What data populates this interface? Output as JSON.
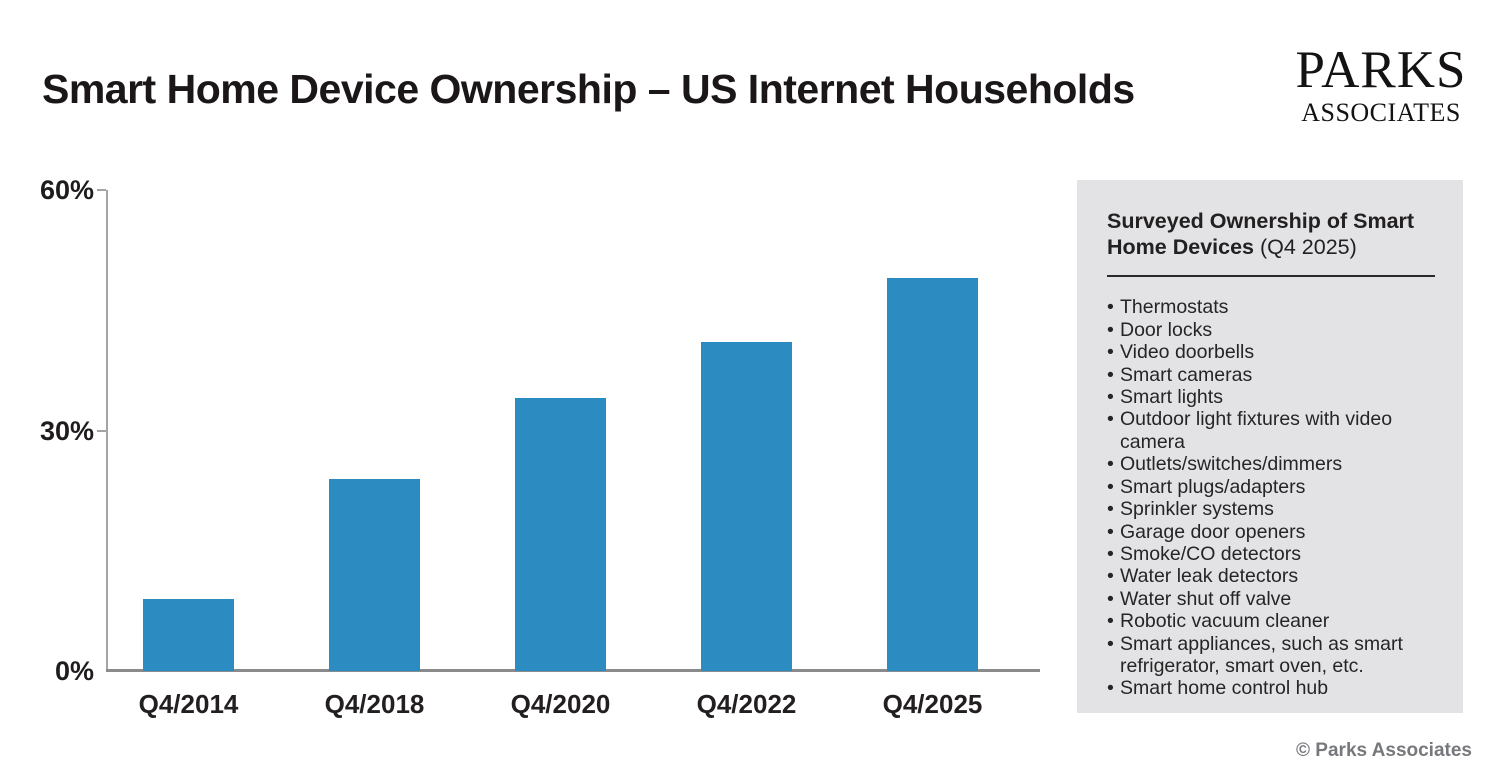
{
  "header": {
    "title": "Smart Home Device Ownership – US Internet Households",
    "logo": {
      "line1": "PARKS",
      "line2": "ASSOCIATES"
    }
  },
  "chart_data": {
    "type": "bar",
    "title": "Smart Home Device Ownership – US Internet Households",
    "categories": [
      "Q4/2014",
      "Q4/2018",
      "Q4/2020",
      "Q4/2022",
      "Q4/2025"
    ],
    "values": [
      9,
      24,
      34,
      41,
      49
    ],
    "unit": "%",
    "xlabel": "",
    "ylabel": "",
    "ylim": [
      0,
      60
    ],
    "yticks": [
      {
        "value": 0,
        "label": "0%"
      },
      {
        "value": 30,
        "label": "30%"
      },
      {
        "value": 60,
        "label": "60%"
      }
    ],
    "bar_color": "#2c8cc1",
    "grid": false,
    "legend": false
  },
  "panel": {
    "background": "#e3e3e5",
    "title_bold": "Surveyed Ownership of Smart Home Devices",
    "title_regular": "(Q4 2025)",
    "items": [
      "Thermostats",
      "Door locks",
      "Video doorbells",
      "Smart cameras",
      "Smart lights",
      "Outdoor light fixtures with video camera",
      "Outlets/switches/dimmers",
      "Smart plugs/adapters",
      "Sprinkler systems",
      "Garage door openers",
      "Smoke/CO detectors",
      "Water leak detectors",
      "Water shut off valve",
      "Robotic vacuum cleaner",
      "Smart appliances, such as smart refrigerator, smart oven, etc.",
      "Smart home control hub"
    ]
  },
  "footer": {
    "copyright": "© Parks Associates"
  }
}
